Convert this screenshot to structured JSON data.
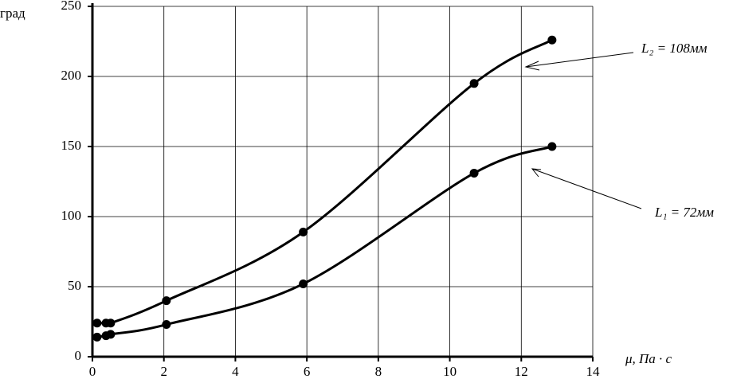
{
  "chart_data": {
    "type": "line",
    "y_label": "град",
    "x_label": "μ, Па · с",
    "xlim": [
      0,
      14
    ],
    "xticks": [
      0,
      2,
      4,
      6,
      8,
      10,
      12,
      14
    ],
    "ylim": [
      0,
      250
    ],
    "yticks": [
      0,
      50,
      100,
      150,
      200,
      250
    ],
    "grid": true,
    "series": [
      {
        "name": "L₂ = 108мм",
        "color": "#000000",
        "x": [
          0.13,
          0.38,
          0.51,
          2.07,
          5.9,
          10.68,
          12.86
        ],
        "values": [
          24,
          24,
          24,
          40,
          89,
          195,
          226
        ]
      },
      {
        "name": "L₁ = 72мм",
        "color": "#000000",
        "x": [
          0.13,
          0.38,
          0.51,
          2.07,
          5.9,
          10.68,
          12.86
        ],
        "values": [
          14,
          15,
          16,
          23,
          52,
          131,
          150
        ]
      }
    ]
  }
}
